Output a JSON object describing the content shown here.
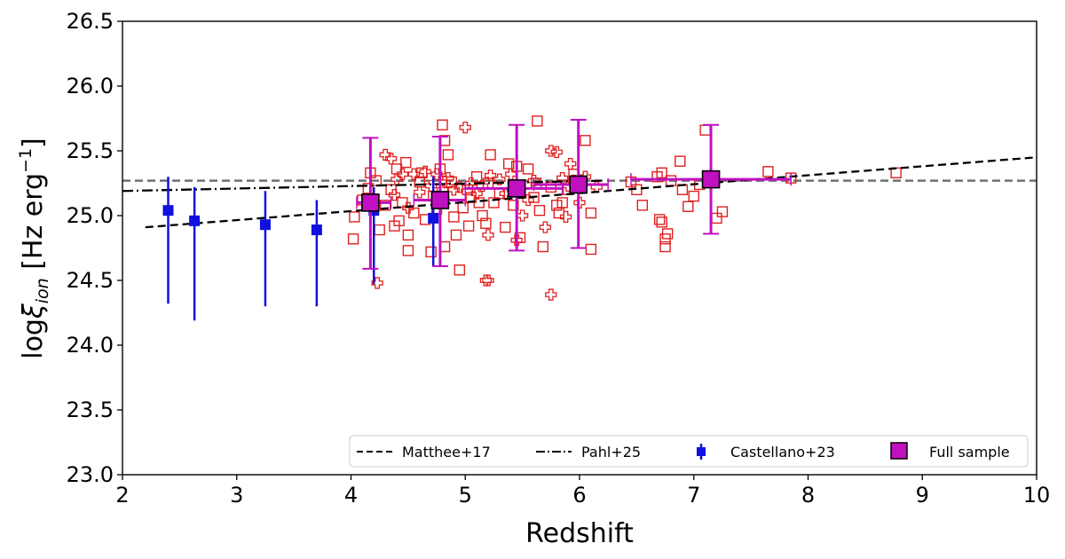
{
  "chart_data": {
    "type": "scatter",
    "xlabel": "Redshift",
    "ylabel_main": "log",
    "ylabel_sym": "ξ",
    "ylabel_sub": "ion",
    "ylabel_unit_pre": " [Hz erg",
    "ylabel_unit_exp": "−1",
    "ylabel_unit_post": "]",
    "xlim": [
      2,
      10
    ],
    "ylim": [
      23.0,
      26.5
    ],
    "xticks": [
      2,
      3,
      4,
      5,
      6,
      7,
      8,
      9,
      10
    ],
    "xtick_labels": [
      "2",
      "3",
      "4",
      "5",
      "6",
      "7",
      "8",
      "9",
      "10"
    ],
    "yticks": [
      23.0,
      23.5,
      24.0,
      24.5,
      25.0,
      25.5,
      26.0,
      26.5
    ],
    "ytick_labels": [
      "23.0",
      "23.5",
      "24.0",
      "24.5",
      "25.0",
      "25.5",
      "26.0",
      "26.5"
    ],
    "reference_hline": {
      "y": 25.27,
      "color": "#707070"
    },
    "lines": [
      {
        "name": "Matthee+17",
        "style": "dashed",
        "color": "#000000",
        "x": [
          2.2,
          10
        ],
        "y": [
          24.91,
          25.45
        ]
      },
      {
        "name": "Pahl+25",
        "style": "dashdot",
        "color": "#000000",
        "x": [
          2,
          6.2
        ],
        "y": [
          25.19,
          25.27
        ]
      }
    ],
    "castellano": {
      "name": "Castellano+23",
      "color": "#1010e0",
      "points": [
        {
          "x": 2.4,
          "y": 25.04,
          "lo": 24.32,
          "hi": 25.3
        },
        {
          "x": 2.63,
          "y": 24.96,
          "lo": 24.19,
          "hi": 25.22
        },
        {
          "x": 3.25,
          "y": 24.93,
          "lo": 24.3,
          "hi": 25.19
        },
        {
          "x": 3.7,
          "y": 24.89,
          "lo": 24.3,
          "hi": 25.12
        },
        {
          "x": 4.2,
          "y": 25.04,
          "lo": 24.47,
          "hi": 25.22
        },
        {
          "x": 4.72,
          "y": 24.98,
          "lo": 24.61,
          "hi": 25.3
        }
      ]
    },
    "full_sample": {
      "name": "Full sample",
      "color": "#c010c0",
      "points": [
        {
          "x": 4.17,
          "y": 25.1,
          "lo": 24.59,
          "hi": 25.6,
          "xlo": 4.05,
          "xhi": 4.35
        },
        {
          "x": 4.78,
          "y": 25.12,
          "lo": 24.61,
          "hi": 25.61,
          "xlo": 4.55,
          "xhi": 5.0
        },
        {
          "x": 5.45,
          "y": 25.21,
          "lo": 24.73,
          "hi": 25.7,
          "xlo": 5.0,
          "xhi": 5.85
        },
        {
          "x": 5.99,
          "y": 25.24,
          "lo": 24.75,
          "hi": 25.74,
          "xlo": 5.6,
          "xhi": 6.25
        },
        {
          "x": 7.15,
          "y": 25.28,
          "lo": 24.86,
          "hi": 25.7,
          "xlo": 6.45,
          "xhi": 7.85
        }
      ]
    },
    "individual_squares": {
      "color": "#e02020",
      "points": [
        [
          4.02,
          24.82
        ],
        [
          4.03,
          24.99
        ],
        [
          4.1,
          25.12
        ],
        [
          4.15,
          25.21
        ],
        [
          4.17,
          25.33
        ],
        [
          4.22,
          25.27
        ],
        [
          4.25,
          24.89
        ],
        [
          4.3,
          25.08
        ],
        [
          4.35,
          25.2
        ],
        [
          4.38,
          24.92
        ],
        [
          4.4,
          25.36
        ],
        [
          4.42,
          24.96
        ],
        [
          4.45,
          25.1
        ],
        [
          4.48,
          25.41
        ],
        [
          4.5,
          24.73
        ],
        [
          4.5,
          24.85
        ],
        [
          4.55,
          25.02
        ],
        [
          4.6,
          25.26
        ],
        [
          4.62,
          25.33
        ],
        [
          4.65,
          24.97
        ],
        [
          4.7,
          24.72
        ],
        [
          4.72,
          25.15
        ],
        [
          4.75,
          25.05
        ],
        [
          4.78,
          25.36
        ],
        [
          4.8,
          25.7
        ],
        [
          4.82,
          24.76
        ],
        [
          4.82,
          25.58
        ],
        [
          4.85,
          25.47
        ],
        [
          4.88,
          25.26
        ],
        [
          4.9,
          24.99
        ],
        [
          4.92,
          24.85
        ],
        [
          4.95,
          24.58
        ],
        [
          4.98,
          25.06
        ],
        [
          5.02,
          25.2
        ],
        [
          5.03,
          24.92
        ],
        [
          5.05,
          25.14
        ],
        [
          5.1,
          25.3
        ],
        [
          5.12,
          25.1
        ],
        [
          5.15,
          25.0
        ],
        [
          5.18,
          24.94
        ],
        [
          5.2,
          25.25
        ],
        [
          5.22,
          25.47
        ],
        [
          5.25,
          25.1
        ],
        [
          5.3,
          25.17
        ],
        [
          5.35,
          24.91
        ],
        [
          5.38,
          25.4
        ],
        [
          5.42,
          25.08
        ],
        [
          5.45,
          25.38
        ],
        [
          5.48,
          24.83
        ],
        [
          5.55,
          25.36
        ],
        [
          5.6,
          25.14
        ],
        [
          5.62,
          25.25
        ],
        [
          5.65,
          25.04
        ],
        [
          5.68,
          24.76
        ],
        [
          5.75,
          25.22
        ],
        [
          5.8,
          25.08
        ],
        [
          5.82,
          25.02
        ],
        [
          5.85,
          25.1
        ],
        [
          5.9,
          25.2
        ],
        [
          5.95,
          25.32
        ],
        [
          6.05,
          25.58
        ],
        [
          6.1,
          25.02
        ],
        [
          6.1,
          24.74
        ],
        [
          5.63,
          25.73
        ],
        [
          6.5,
          25.2
        ],
        [
          6.55,
          25.08
        ],
        [
          6.7,
          24.97
        ],
        [
          6.72,
          24.95
        ],
        [
          6.72,
          25.33
        ],
        [
          6.75,
          24.76
        ],
        [
          6.75,
          24.82
        ],
        [
          6.77,
          24.86
        ],
        [
          6.8,
          25.27
        ],
        [
          6.88,
          25.42
        ],
        [
          6.9,
          25.2
        ],
        [
          6.95,
          25.07
        ],
        [
          7.0,
          25.15
        ],
        [
          7.05,
          25.24
        ],
        [
          7.1,
          25.66
        ],
        [
          7.2,
          24.98
        ],
        [
          7.25,
          25.03
        ],
        [
          7.65,
          25.34
        ],
        [
          7.85,
          25.29
        ],
        [
          8.77,
          25.33
        ],
        [
          6.68,
          25.3
        ],
        [
          6.45,
          25.26
        ]
      ]
    },
    "individual_crosses": {
      "color": "#e02020",
      "points": [
        [
          4.23,
          24.48
        ],
        [
          4.3,
          25.47
        ],
        [
          4.35,
          25.44
        ],
        [
          4.38,
          25.16
        ],
        [
          4.4,
          25.28
        ],
        [
          4.45,
          25.32
        ],
        [
          4.5,
          25.06
        ],
        [
          4.55,
          25.32
        ],
        [
          4.6,
          25.18
        ],
        [
          4.65,
          25.34
        ],
        [
          4.7,
          25.23
        ],
        [
          4.75,
          25.32
        ],
        [
          4.8,
          25.2
        ],
        [
          4.82,
          25.26
        ],
        [
          4.85,
          25.29
        ],
        [
          4.9,
          25.2
        ],
        [
          4.95,
          25.22
        ],
        [
          5.0,
          25.68
        ],
        [
          5.05,
          25.25
        ],
        [
          5.1,
          25.17
        ],
        [
          5.15,
          25.23
        ],
        [
          5.18,
          24.5
        ],
        [
          5.2,
          24.5
        ],
        [
          5.2,
          24.85
        ],
        [
          5.22,
          25.31
        ],
        [
          5.3,
          25.28
        ],
        [
          5.35,
          25.17
        ],
        [
          5.4,
          25.32
        ],
        [
          5.45,
          24.81
        ],
        [
          5.5,
          25.0
        ],
        [
          5.55,
          25.12
        ],
        [
          5.6,
          25.27
        ],
        [
          5.7,
          24.91
        ],
        [
          5.75,
          25.5
        ],
        [
          5.75,
          24.39
        ],
        [
          5.8,
          25.49
        ],
        [
          5.85,
          25.29
        ],
        [
          5.9,
          25.23
        ],
        [
          5.95,
          25.27
        ],
        [
          6.0,
          25.1
        ],
        [
          5.92,
          25.4
        ],
        [
          6.05,
          25.3
        ],
        [
          6.15,
          25.22
        ],
        [
          5.88,
          24.99
        ]
      ]
    },
    "legend": {
      "location": "lower-right",
      "entries": [
        "Matthee+17",
        "Pahl+25",
        "Castellano+23",
        "Full sample"
      ]
    }
  }
}
